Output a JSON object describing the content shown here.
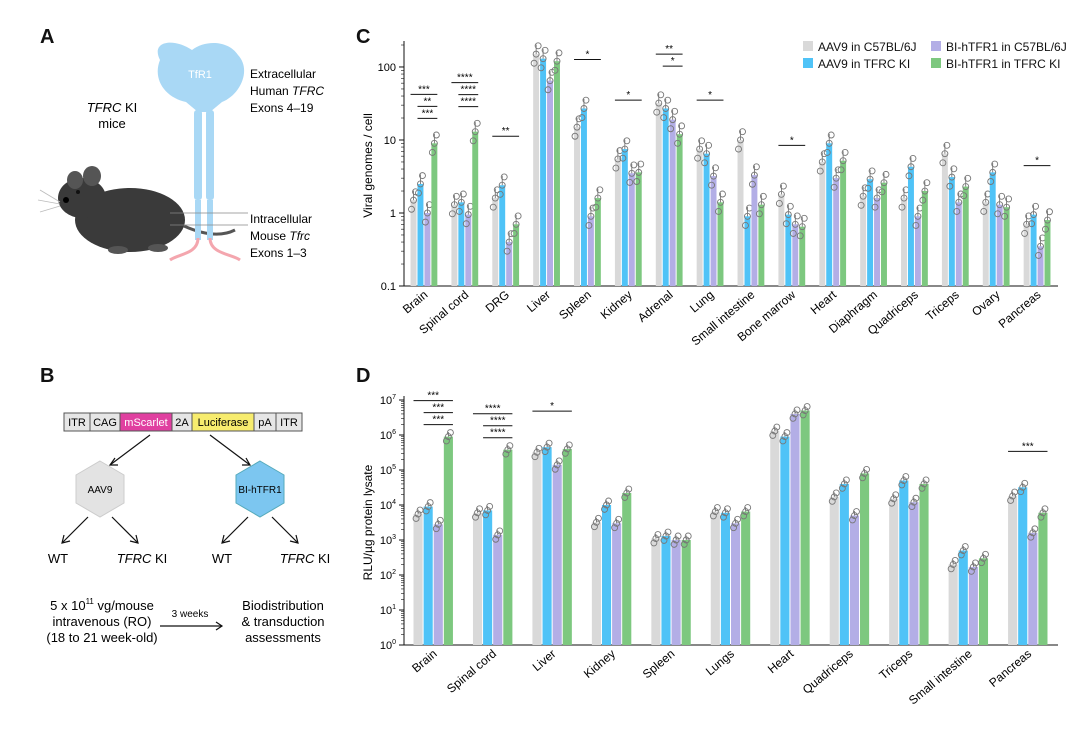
{
  "panel_labels": {
    "a": "A",
    "b": "B",
    "c": "C",
    "d": "D"
  },
  "panelA": {
    "mouse_label_italic": "TFRC",
    "mouse_label_rest": " KI",
    "mouse_label_line2": "mice",
    "receptor_label": "TfR1",
    "extracellular": {
      "line1": "Extracellular",
      "line2_pre": "Human ",
      "line2_italic": "TFRC",
      "line3": "Exons 4–19"
    },
    "intracellular": {
      "line1": "Intracellular",
      "line2_pre": "Mouse ",
      "line2_italic": "Tfrc",
      "line3": "Exons 1–3"
    }
  },
  "panelB": {
    "construct": [
      "ITR",
      "CAG",
      "mScarlet",
      "2A",
      "Luciferase",
      "pA",
      "ITR"
    ],
    "vector_left": "AAV9",
    "vector_right": "BI-hTFR1",
    "outcomes": {
      "wt": "WT",
      "ki_italic": "TFRC",
      "ki_rest": " KI"
    },
    "dose_line1_pre": "5 x 10",
    "dose_line1_sup": "11",
    "dose_line1_post": " vg/mouse",
    "dose_line2": "intravenous (RO)",
    "dose_line3": "(18 to 21 week-old)",
    "duration": "3 weeks",
    "assess_line1": "Biodistribution",
    "assess_line2": "& transduction",
    "assess_line3": "assessments"
  },
  "legend": [
    {
      "name": "AAV9 in C57BL/6J",
      "color": "#d9d9d9"
    },
    {
      "name": "AAV9 in TFRC KI",
      "color": "#4fc3f7"
    },
    {
      "name": "BI-hTFR1 in C57BL/6J",
      "color": "#b3aee6"
    },
    {
      "name": "BI-hTFR1 in TFRC KI",
      "color": "#7dc87f"
    }
  ],
  "chart_data": [
    {
      "type": "bar",
      "panel": "C",
      "ylabel": "Viral genomes / cell",
      "yscale": "log",
      "ylim": [
        0.1,
        200
      ],
      "yticks": [
        "0.1",
        "1",
        "10",
        "100"
      ],
      "categories": [
        "Brain",
        "Spinal cord",
        "DRG",
        "Liver",
        "Spleen",
        "Kidney",
        "Adrenal",
        "Lung",
        "Small intestine",
        "Bone marrow",
        "Heart",
        "Diaphragm",
        "Quadriceps",
        "Triceps",
        "Ovary",
        "Pancreas"
      ],
      "series": [
        {
          "name": "AAV9 in C57BL/6J",
          "values": [
            1.5,
            1.3,
            1.6,
            150,
            15,
            5.5,
            32,
            7.5,
            10,
            1.8,
            5,
            1.7,
            1.6,
            6.5,
            1.4,
            0.7
          ]
        },
        {
          "name": "AAV9 in TFRC KI",
          "values": [
            2.5,
            1.4,
            2.4,
            130,
            27,
            7.5,
            27,
            6.5,
            0.9,
            0.95,
            9,
            2.9,
            4.3,
            3.1,
            3.6,
            0.95
          ]
        },
        {
          "name": "BI-hTFR1 in C57BL/6J",
          "values": [
            1.0,
            0.95,
            0.4,
            65,
            0.9,
            3.5,
            19,
            3.2,
            3.3,
            0.7,
            3.0,
            1.6,
            0.9,
            1.4,
            1.3,
            0.35
          ]
        },
        {
          "name": "BI-hTFR1 in TFRC KI",
          "values": [
            9,
            13,
            0.7,
            120,
            1.6,
            3.6,
            12,
            1.4,
            1.3,
            0.65,
            5.2,
            2.6,
            2.0,
            2.3,
            1.2,
            0.8
          ]
        }
      ],
      "significance": [
        {
          "category": "Brain",
          "label": "***"
        },
        {
          "category": "Brain",
          "label": "**"
        },
        {
          "category": "Brain",
          "label": "***"
        },
        {
          "category": "Spinal cord",
          "label": "****"
        },
        {
          "category": "Spinal cord",
          "label": "****"
        },
        {
          "category": "Spinal cord",
          "label": "****"
        },
        {
          "category": "DRG",
          "label": "**"
        },
        {
          "category": "Spleen",
          "label": "*"
        },
        {
          "category": "Kidney",
          "label": "*"
        },
        {
          "category": "Adrenal",
          "label": "**"
        },
        {
          "category": "Adrenal",
          "label": "*"
        },
        {
          "category": "Lung",
          "label": "*"
        },
        {
          "category": "Bone marrow",
          "label": "*"
        },
        {
          "category": "Pancreas",
          "label": "*"
        }
      ],
      "legend_position": "top-right"
    },
    {
      "type": "bar",
      "panel": "D",
      "ylabel": "RLU/µg protein lysate",
      "yscale": "log",
      "ylim": [
        1,
        10000000
      ],
      "yticks": [
        "10^0",
        "10^1",
        "10^2",
        "10^3",
        "10^4",
        "10^5",
        "10^6",
        "10^7"
      ],
      "categories": [
        "Brain",
        "Spinal cord",
        "Liver",
        "Kidney",
        "Spleen",
        "Lungs",
        "Heart",
        "Quadriceps",
        "Triceps",
        "Small intestine",
        "Pancreas"
      ],
      "series": [
        {
          "name": "AAV9 in C57BL/6J",
          "values": [
            5500,
            6000,
            320000,
            3200,
            1100,
            6500,
            1300000,
            17000,
            15000,
            200,
            18000
          ]
        },
        {
          "name": "AAV9 in TFRC KI",
          "values": [
            9000,
            7000,
            450000,
            10000,
            1300,
            6000,
            900000,
            40000,
            50000,
            500,
            32000
          ]
        },
        {
          "name": "BI-hTFR1 in C57BL/6J",
          "values": [
            2800,
            1400,
            140000,
            3000,
            1000,
            3000,
            4000000,
            5000,
            12000,
            170,
            1600
          ]
        },
        {
          "name": "BI-hTFR1 in TFRC KI",
          "values": [
            900000,
            380000,
            400000,
            22000,
            1000,
            6500,
            5000000,
            80000,
            40000,
            300,
            6000
          ]
        }
      ],
      "significance": [
        {
          "category": "Brain",
          "label": "***"
        },
        {
          "category": "Brain",
          "label": "***"
        },
        {
          "category": "Brain",
          "label": "***"
        },
        {
          "category": "Spinal cord",
          "label": "****"
        },
        {
          "category": "Spinal cord",
          "label": "****"
        },
        {
          "category": "Spinal cord",
          "label": "****"
        },
        {
          "category": "Liver",
          "label": "*"
        },
        {
          "category": "Pancreas",
          "label": "***"
        }
      ]
    }
  ]
}
